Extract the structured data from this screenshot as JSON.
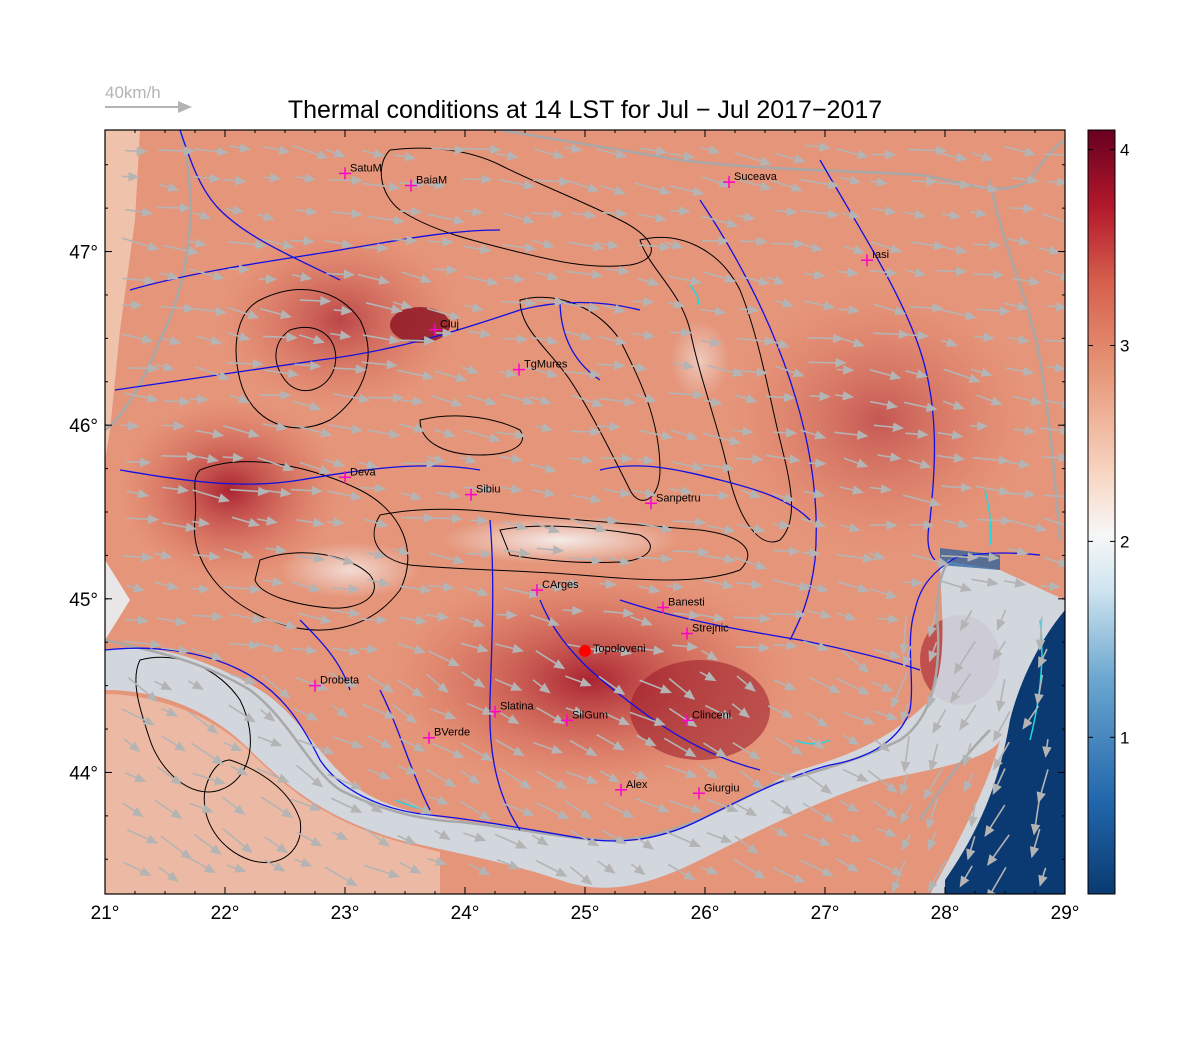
{
  "title": "Thermal conditions at 14 LST for Jul − Jul  2017−2017",
  "wind_legend": {
    "label": "40km/h",
    "color": "#b4b4b4"
  },
  "map": {
    "lon_range": [
      21,
      29
    ],
    "lat_range": [
      43.3,
      47.7
    ],
    "lon_ticks": [
      "21°",
      "22°",
      "23°",
      "24°",
      "25°",
      "26°",
      "27°",
      "28°",
      "29°"
    ],
    "lat_ticks": [
      "44°",
      "45°",
      "46°",
      "47°"
    ],
    "river_color": "#1010e6",
    "border_color": "#a8a8a8",
    "contour_color": "#000000",
    "lake_color": "#20d8e0",
    "marker_color": "#ff00cc",
    "highlight_color": "#ff0000"
  },
  "colorbar": {
    "min": 0.2,
    "max": 4.1,
    "ticks": [
      "1",
      "2",
      "3",
      "4"
    ],
    "tick_values": [
      1,
      2,
      3,
      4
    ],
    "colors": [
      "#0a3a70",
      "#2166ac",
      "#6aa6cf",
      "#d1e5f0",
      "#f7f7f7",
      "#f8d6c2",
      "#e7987a",
      "#d6604d",
      "#b2182b",
      "#67001f"
    ]
  },
  "stations": [
    {
      "name": "SatuM",
      "lon": 23.0,
      "lat": 47.45
    },
    {
      "name": "BaiaM",
      "lon": 23.55,
      "lat": 47.38
    },
    {
      "name": "Suceava",
      "lon": 26.2,
      "lat": 47.4
    },
    {
      "name": "Iasi",
      "lon": 27.35,
      "lat": 46.95
    },
    {
      "name": "Cluj",
      "lon": 23.75,
      "lat": 46.55
    },
    {
      "name": "TgMures",
      "lon": 24.45,
      "lat": 46.32
    },
    {
      "name": "Deva",
      "lon": 23.0,
      "lat": 45.7
    },
    {
      "name": "Sibiu",
      "lon": 24.05,
      "lat": 45.6
    },
    {
      "name": "Sanpetru",
      "lon": 25.55,
      "lat": 45.55
    },
    {
      "name": "CArges",
      "lon": 24.6,
      "lat": 45.05
    },
    {
      "name": "Banesti",
      "lon": 25.65,
      "lat": 44.95
    },
    {
      "name": "Strejnic",
      "lon": 25.85,
      "lat": 44.8
    },
    {
      "name": "Drobeta",
      "lon": 22.75,
      "lat": 44.5
    },
    {
      "name": "Slatina",
      "lon": 24.25,
      "lat": 44.35
    },
    {
      "name": "SilGum",
      "lon": 24.85,
      "lat": 44.3
    },
    {
      "name": "Clinceni",
      "lon": 25.85,
      "lat": 44.3
    },
    {
      "name": "BVerde",
      "lon": 23.7,
      "lat": 44.2
    },
    {
      "name": "Alex",
      "lon": 25.3,
      "lat": 43.9
    },
    {
      "name": "Giurgiu",
      "lon": 25.95,
      "lat": 43.88
    }
  ],
  "highlight_station": {
    "name": "Topoloveni",
    "lon": 25.0,
    "lat": 44.7
  }
}
